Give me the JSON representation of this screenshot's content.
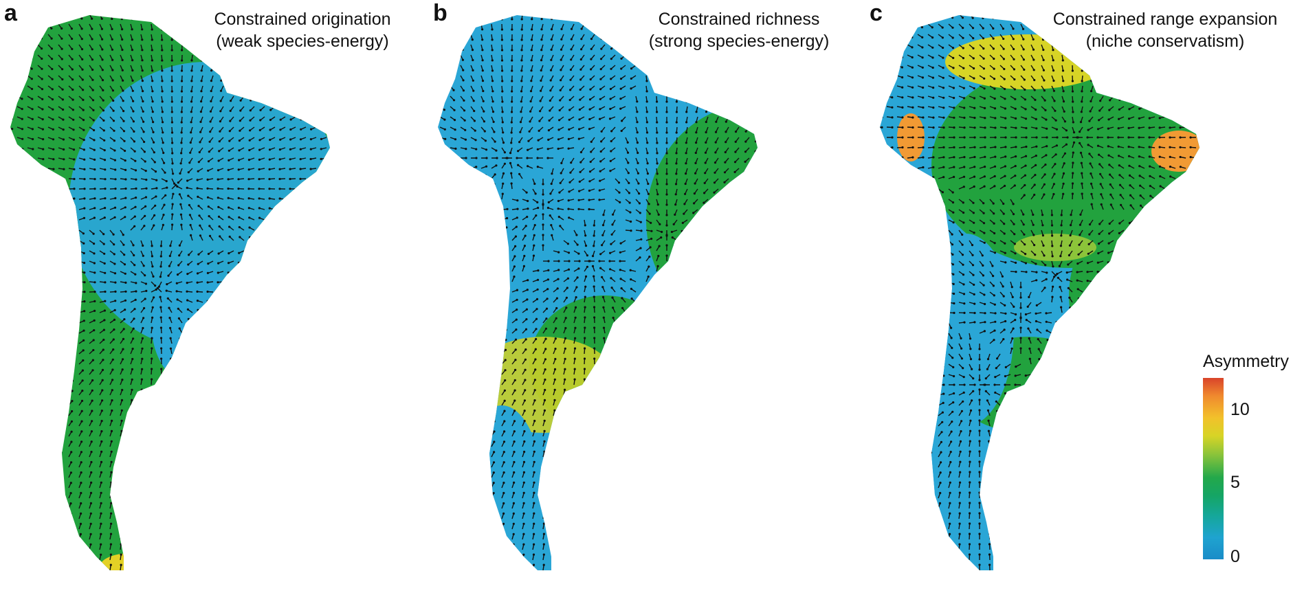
{
  "panels": [
    {
      "letter": "a",
      "title_line1": "Constrained origination",
      "title_line2": "(weak species-energy)"
    },
    {
      "letter": "b",
      "title_line1": "Constrained richness",
      "title_line2": "(strong species-energy)"
    },
    {
      "letter": "c",
      "title_line1": "Constrained range expansion",
      "title_line2": "(niche conservatism)"
    }
  ],
  "legend": {
    "title": "Asymmetry",
    "ticks": [
      "10",
      "5",
      "0"
    ],
    "min": 0,
    "max": 12,
    "colors": [
      "#1a8cc8",
      "#1fa3cf",
      "#23a84b",
      "#8cc43a",
      "#f2c12b",
      "#d9442a"
    ]
  },
  "map_colors": {
    "blue": "#2aa6d6",
    "green": "#22a23e",
    "yellow": "#e3d126",
    "orange": "#f19a34",
    "red": "#e2532c",
    "arrow": "#111111"
  }
}
